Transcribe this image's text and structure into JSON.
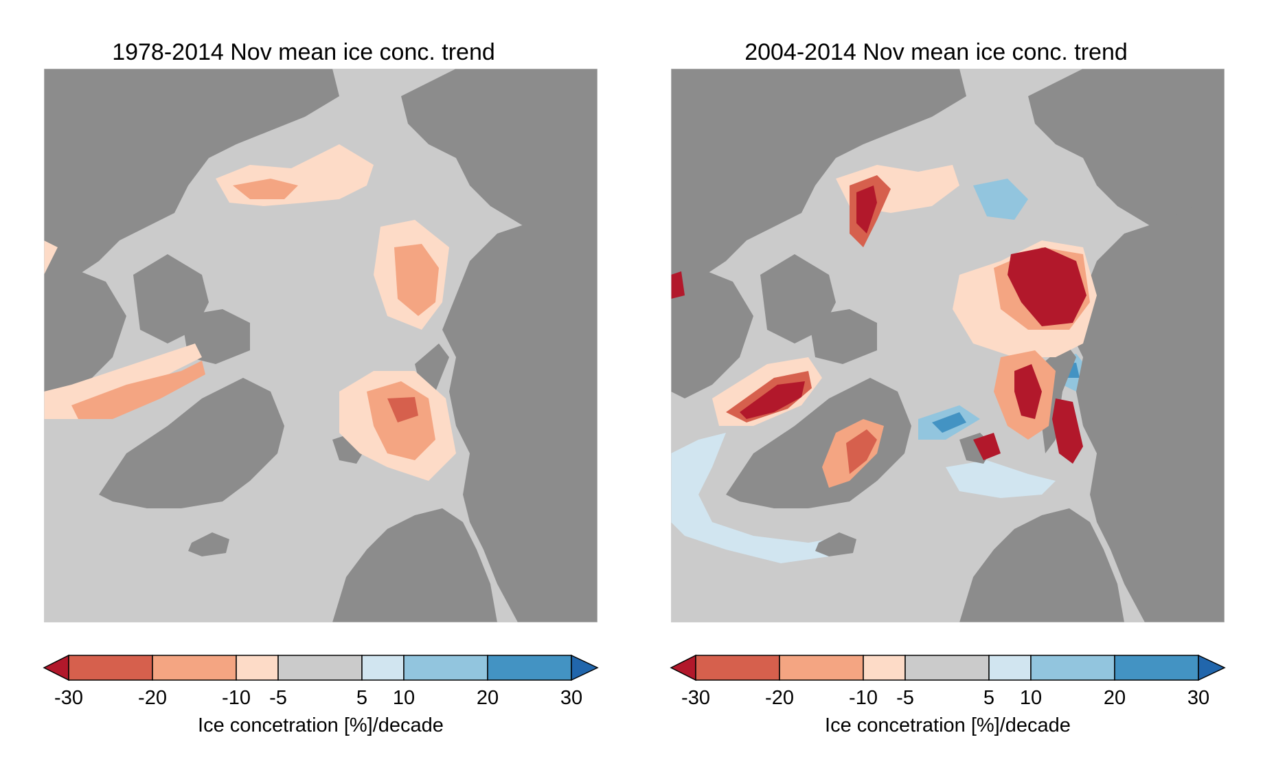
{
  "panels": [
    {
      "title": "1978-2014 Nov mean ice conc. trend",
      "map_content": "Arctic November sea-ice concentration trend; mostly weak-to-moderate decline (-5 to -20 %/decade) around Beaufort/Chukchi, Barents and Baffin Bay",
      "colorbar": {
        "bounds": [
          -30,
          -20,
          -10,
          -5,
          5,
          10,
          20,
          30
        ],
        "tick_labels": [
          "-30",
          "-20",
          "-10",
          "-5",
          "5",
          "10",
          "20",
          "30"
        ],
        "label": "Ice concetration [%]/decade",
        "extend": "both"
      }
    },
    {
      "title": "2004-2014 Nov mean ice conc. trend",
      "map_content": "Arctic November sea-ice concentration trend; strong decline (< -30 %/decade) in Barents/Kara and Baffin Bay, some positive trends in Greenland Sea",
      "colorbar": {
        "bounds": [
          -30,
          -20,
          -10,
          -5,
          5,
          10,
          20,
          30
        ],
        "tick_labels": [
          "-30",
          "-20",
          "-10",
          "-5",
          "5",
          "10",
          "20",
          "30"
        ],
        "label": "Ice concetration [%]/decade",
        "extend": "both"
      }
    }
  ],
  "colors": {
    "land": "#8c8c8c",
    "ocean_no_trend": "#cbcbcb",
    "extend_low": "#b2182b",
    "bins": [
      "#d6604d",
      "#f4a582",
      "#fddbc7",
      "#cbcbcb",
      "#d1e5f0",
      "#92c5de",
      "#4393c3"
    ],
    "extend_high": "#2166ac",
    "strong_decline": "#b2182b"
  }
}
